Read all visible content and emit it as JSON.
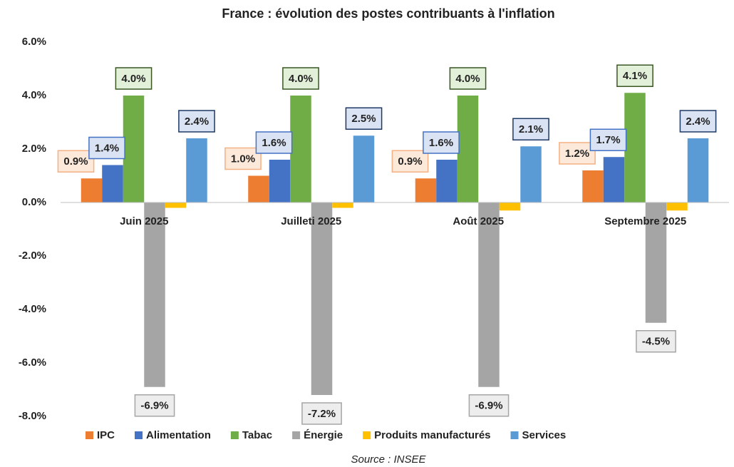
{
  "chart_data": {
    "type": "bar",
    "title": "France : évolution des postes contribuants à l'inflation",
    "source": "Source : INSEE",
    "categories": [
      "Juin 2025",
      "Juilleti 2025",
      "Août  2025",
      "Septembre 2025"
    ],
    "series": [
      {
        "name": "IPC",
        "color": "#ed7d31",
        "label_fill": "#fde9d9",
        "label_stroke": "#f4b183",
        "values": [
          0.9,
          1.0,
          0.9,
          1.2
        ],
        "value_labels": [
          "0.9%",
          "1.0%",
          "0.9%",
          "1.2%"
        ]
      },
      {
        "name": "Alimentation",
        "color": "#4472c4",
        "label_fill": "#dae3f3",
        "label_stroke": "#4472c4",
        "values": [
          1.4,
          1.6,
          1.6,
          1.7
        ],
        "value_labels": [
          "1.4%",
          "1.6%",
          "1.6%",
          "1.7%"
        ]
      },
      {
        "name": "Tabac",
        "color": "#70ad47",
        "label_fill": "#e2f0d9",
        "label_stroke": "#385723",
        "values": [
          4.0,
          4.0,
          4.0,
          4.1
        ],
        "value_labels": [
          "4.0%",
          "4.0%",
          "4.0%",
          "4.1%"
        ]
      },
      {
        "name": "Énergie",
        "color": "#a5a5a5",
        "label_fill": "#ededed",
        "label_stroke": "#a5a5a5",
        "values": [
          -6.9,
          -7.2,
          -6.9,
          -4.5
        ],
        "value_labels": [
          "-6.9%",
          "-7.2%",
          "-6.9%",
          "-4.5%"
        ]
      },
      {
        "name": "Produits manufacturés",
        "color": "#ffc000",
        "values": [
          -0.2,
          -0.2,
          -0.3,
          -0.3
        ]
      },
      {
        "name": "Services",
        "color": "#5b9bd5",
        "label_fill": "#dae3f3",
        "label_stroke": "#1f3864",
        "values": [
          2.4,
          2.5,
          2.1,
          2.4
        ],
        "value_labels": [
          "2.4%",
          "2.5%",
          "2.1%",
          "2.4%"
        ]
      }
    ],
    "ylim": [
      -8,
      6
    ],
    "yticks": [
      {
        "value": -8,
        "label": "-8.0%"
      },
      {
        "value": -6,
        "label": "-6.0%"
      },
      {
        "value": -4,
        "label": "-4.0%"
      },
      {
        "value": -2,
        "label": "-2.0%"
      },
      {
        "value": 0,
        "label": "0.0%"
      },
      {
        "value": 2,
        "label": "2.0%"
      },
      {
        "value": 4,
        "label": "4.0%"
      },
      {
        "value": 6,
        "label": "6.0%"
      }
    ],
    "grid": false
  }
}
